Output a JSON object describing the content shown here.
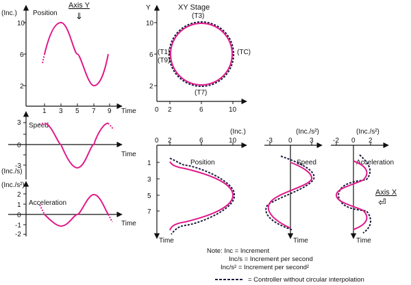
{
  "colors": {
    "ideal_curve": "#e0188a",
    "dashed_curve": "#1a1a3a",
    "axis": "#111111"
  },
  "labels": {
    "axis_y": "Axis Y",
    "axis_x": "Axis X",
    "xy_stage": "XY Stage",
    "position": "Position",
    "speed": "Speed",
    "acceleration": "Acceleration",
    "time": "Time",
    "y": "Y",
    "inc": "(Inc.)",
    "inc_per_s": "(Inc./s)",
    "inc_per_s2": "(Inc./s²)",
    "t1": "(T1)",
    "t3": "(T3)",
    "t7": "(T7)",
    "t9": "(T9)",
    "tc": "(TC)"
  },
  "ticks": {
    "pos_y": [
      "10",
      "6",
      "2"
    ],
    "time_x": [
      "1",
      "3",
      "5",
      "7",
      "9"
    ],
    "speed_y": [
      "3",
      "0",
      "-3"
    ],
    "acc_y": [
      "2",
      "1",
      "0",
      "-1",
      "-2"
    ],
    "xy_y": [
      "10",
      "6",
      "2"
    ],
    "xy_x": [
      "0",
      "2",
      "6",
      "10"
    ],
    "xpos_x": [
      "0",
      "2",
      "6",
      "10"
    ],
    "xpos_t": [
      "1",
      "3",
      "5",
      "7"
    ],
    "xspeed_x": [
      "-3",
      "0",
      "3"
    ],
    "xacc_x": [
      "-2",
      "0",
      "2"
    ]
  },
  "notes": {
    "line1": "Note: Inc  = Increment",
    "line2": "Inc/s  = Increment per second",
    "line3": "Inc/s²  = Increment per second²",
    "legend": "= Controller without circular interpolation"
  }
}
